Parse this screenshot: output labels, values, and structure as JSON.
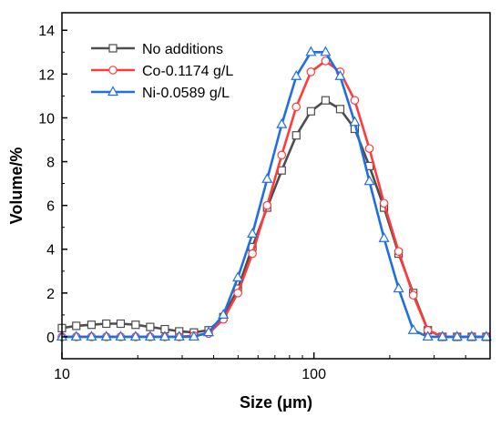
{
  "chart_data": {
    "type": "line",
    "title": "",
    "xlabel": "Size (μm)",
    "ylabel": "Volume/%",
    "xscale": "log",
    "xlim": [
      10,
      500
    ],
    "ylim": [
      -1,
      14.8
    ],
    "xticks": [
      10,
      100
    ],
    "xtick_labels": [
      "10",
      "100"
    ],
    "yticks": [
      0,
      2,
      4,
      6,
      8,
      10,
      12,
      14
    ],
    "ytick_labels": [
      "0",
      "2",
      "4",
      "6",
      "8",
      "10",
      "12",
      "14"
    ],
    "grid": false,
    "legend_position": "top-left",
    "x": [
      10.0,
      11.4,
      13.1,
      15.0,
      17.1,
      19.6,
      22.4,
      25.6,
      29.2,
      33.4,
      38.2,
      43.7,
      49.9,
      57.0,
      65.2,
      74.5,
      85.1,
      97.3,
      111.2,
      127.1,
      145.2,
      166.0,
      189.7,
      216.8,
      247.8,
      283.2,
      323.7,
      370.0,
      422.9,
      483.3
    ],
    "series": [
      {
        "name": "No additions",
        "color": "#4d4d4d",
        "marker": "square",
        "values": [
          0.4,
          0.5,
          0.55,
          0.6,
          0.6,
          0.55,
          0.45,
          0.35,
          0.25,
          0.2,
          0.3,
          0.9,
          2.2,
          4.1,
          5.9,
          7.6,
          9.2,
          10.3,
          10.8,
          10.4,
          9.5,
          7.8,
          5.9,
          3.8,
          2.0,
          0.3,
          0.0,
          0.0,
          0.0,
          0.0
        ]
      },
      {
        "name": "Co-0.1174 g/L",
        "color": "#ff3b3b",
        "marker": "circle",
        "values": [
          0.0,
          0.0,
          0.0,
          0.0,
          0.0,
          0.0,
          0.0,
          0.0,
          0.0,
          0.05,
          0.15,
          0.8,
          2.0,
          3.8,
          6.0,
          8.3,
          10.5,
          12.1,
          12.6,
          12.1,
          10.8,
          8.6,
          6.1,
          3.9,
          1.9,
          0.3,
          0.0,
          0.0,
          0.0,
          0.0
        ]
      },
      {
        "name": "Ni-0.0589 g/L",
        "color": "#1f6fe0",
        "marker": "triangle",
        "values": [
          0.0,
          0.0,
          0.0,
          0.0,
          0.0,
          0.0,
          0.0,
          0.0,
          0.0,
          0.0,
          0.2,
          1.0,
          2.7,
          4.7,
          7.2,
          9.7,
          11.9,
          13.0,
          13.0,
          11.9,
          9.8,
          7.1,
          4.5,
          2.2,
          0.3,
          0.0,
          0.0,
          0.0,
          0.0,
          0.0
        ]
      }
    ]
  }
}
